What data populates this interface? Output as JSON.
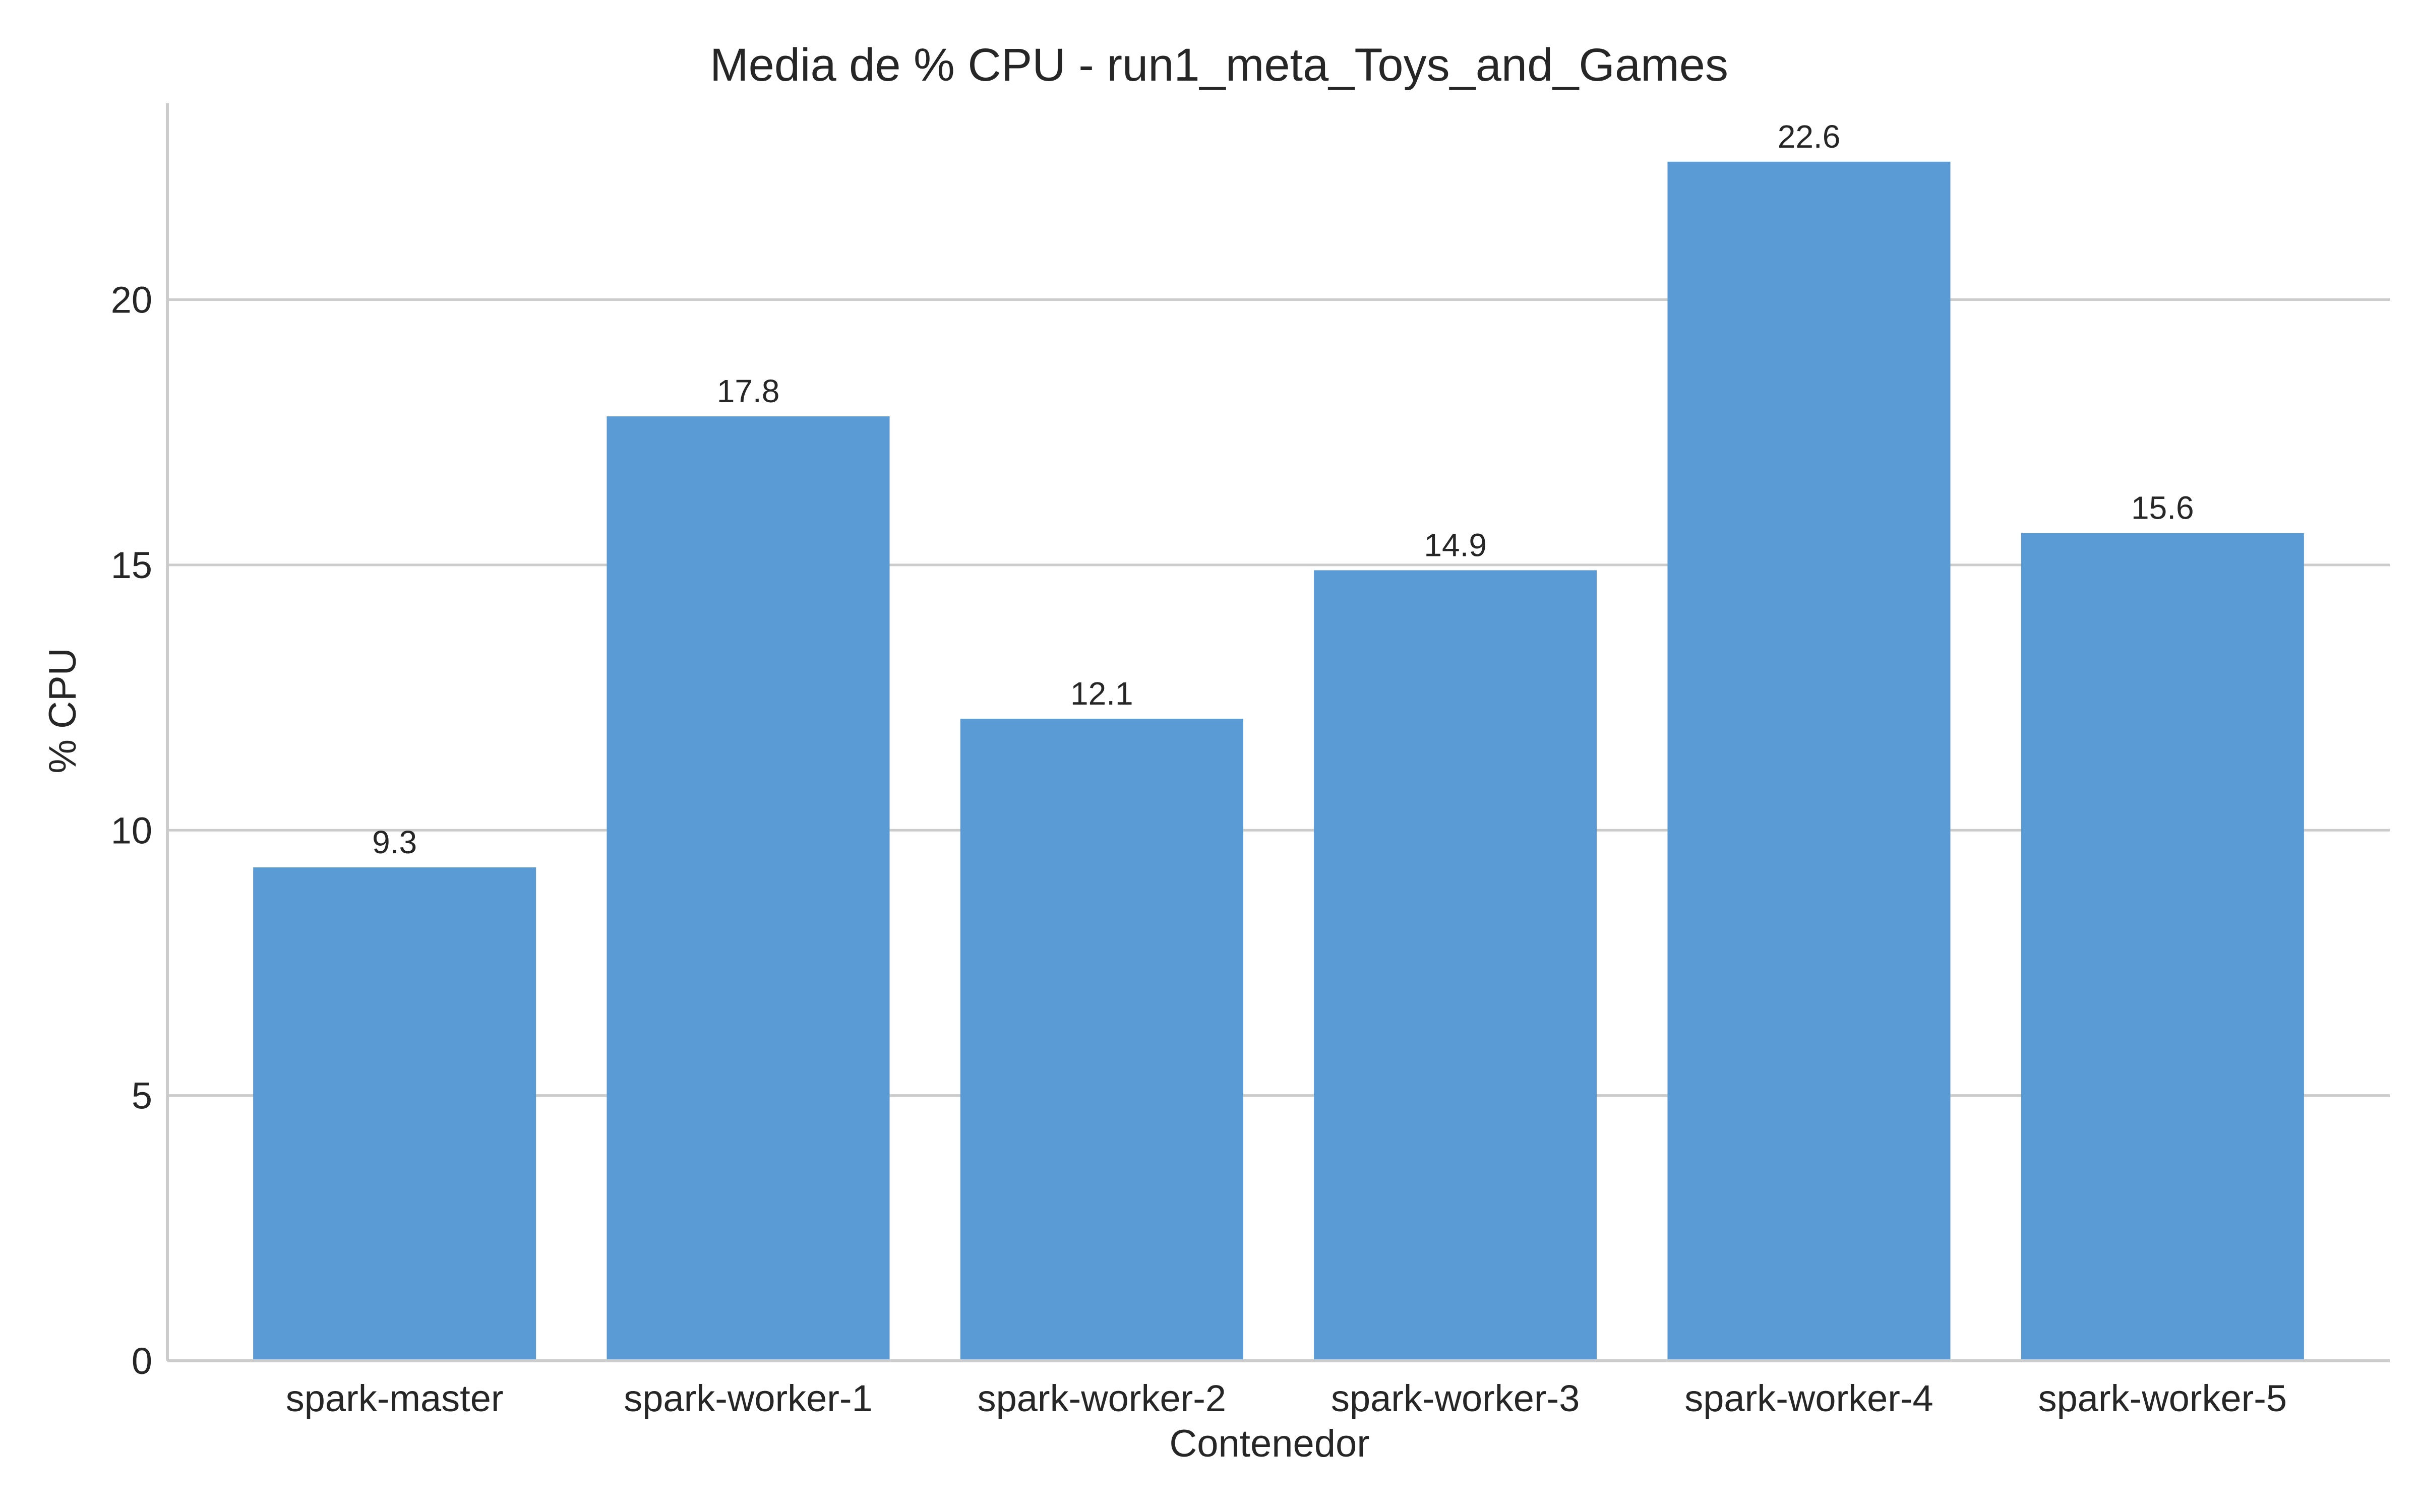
{
  "chart_data": {
    "type": "bar",
    "title": "Media de % CPU - run1_meta_Toys_and_Games",
    "xlabel": "Contenedor",
    "ylabel": "% CPU",
    "categories": [
      "spark-master",
      "spark-worker-1",
      "spark-worker-2",
      "spark-worker-3",
      "spark-worker-4",
      "spark-worker-5"
    ],
    "values": [
      9.3,
      17.8,
      12.1,
      14.9,
      22.6,
      15.6
    ],
    "value_labels": [
      "9.3",
      "17.8",
      "12.1",
      "14.9",
      "22.6",
      "15.6"
    ],
    "yticks": [
      0,
      5,
      10,
      15,
      20
    ],
    "ytick_labels": [
      "0",
      "5",
      "10",
      "15",
      "20"
    ],
    "ylim": [
      0,
      23.7
    ],
    "grid": "horizontal",
    "legend": "none",
    "bar_color": "#5b9bd5"
  }
}
